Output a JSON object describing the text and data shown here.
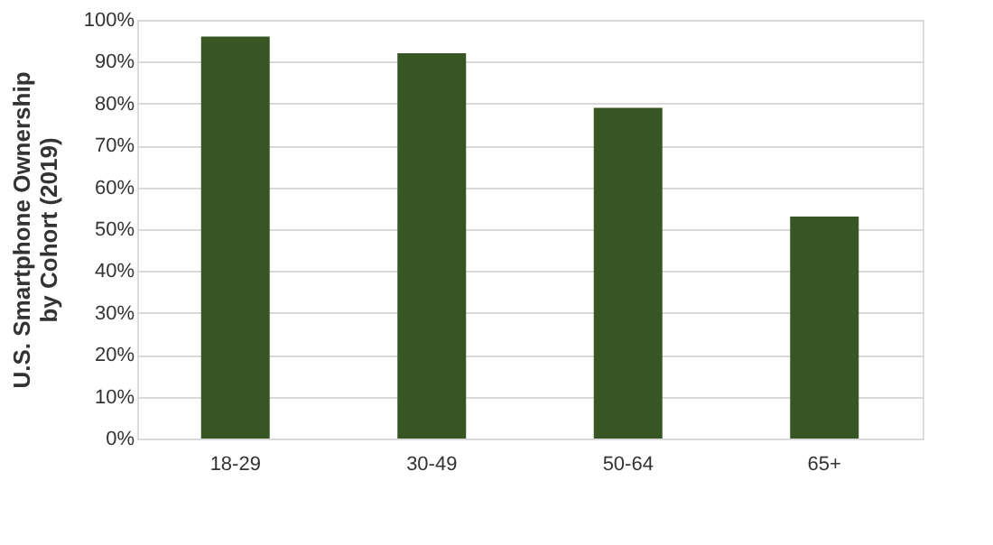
{
  "chart_data": {
    "type": "bar",
    "ylabel": "U.S. Smartphone Ownership by Cohort (2019)",
    "categories": [
      "18-29",
      "30-49",
      "50-64",
      "65+"
    ],
    "values": [
      96,
      92,
      79,
      53
    ],
    "color": "#375623",
    "ylim": [
      0,
      100
    ],
    "yticks": [
      {
        "value": 0,
        "label": "0%"
      },
      {
        "value": 10,
        "label": "10%"
      },
      {
        "value": 20,
        "label": "20%"
      },
      {
        "value": 30,
        "label": "30%"
      },
      {
        "value": 40,
        "label": "40%"
      },
      {
        "value": 50,
        "label": "50%"
      },
      {
        "value": 60,
        "label": "60%"
      },
      {
        "value": 70,
        "label": "70%"
      },
      {
        "value": 80,
        "label": "80%"
      },
      {
        "value": 90,
        "label": "90%"
      },
      {
        "value": 100,
        "label": "100%"
      }
    ],
    "grid": "y"
  }
}
